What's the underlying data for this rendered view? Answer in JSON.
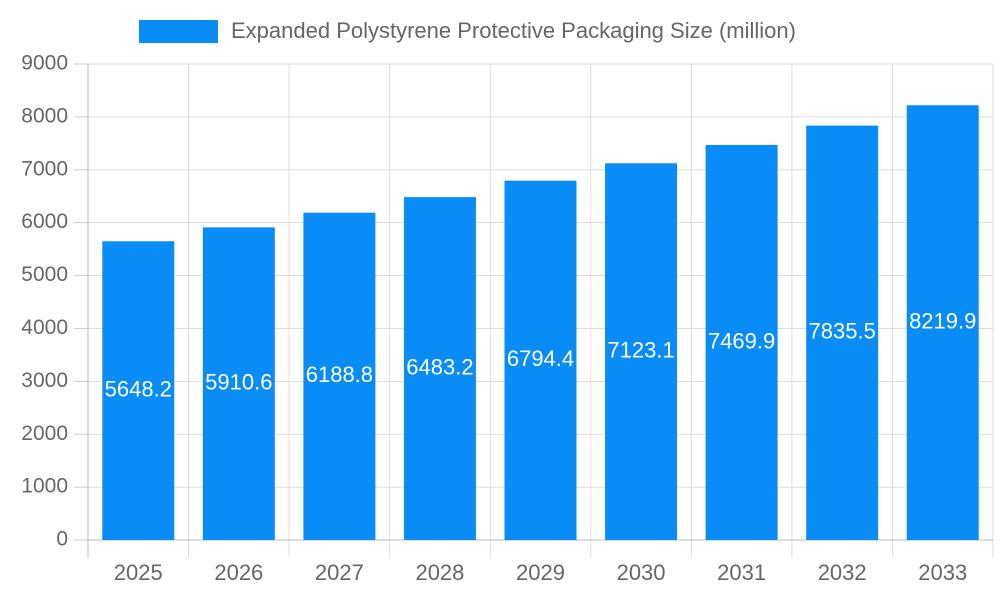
{
  "chart_data": {
    "type": "bar",
    "series": [
      {
        "name": "Expanded Polystyrene Protective Packaging Size (million)",
        "color": "#0a8cf6",
        "values": [
          5648.2,
          5910.6,
          6188.8,
          6483.2,
          6794.4,
          7123.1,
          7469.9,
          7835.5,
          8219.9
        ]
      }
    ],
    "categories": [
      "2025",
      "2026",
      "2027",
      "2028",
      "2029",
      "2030",
      "2031",
      "2032",
      "2033"
    ],
    "ylim": [
      0,
      9000
    ],
    "yticks": [
      0,
      1000,
      2000,
      3000,
      4000,
      5000,
      6000,
      7000,
      8000,
      9000
    ],
    "grid": true,
    "legend": "top",
    "data_labels": true
  }
}
